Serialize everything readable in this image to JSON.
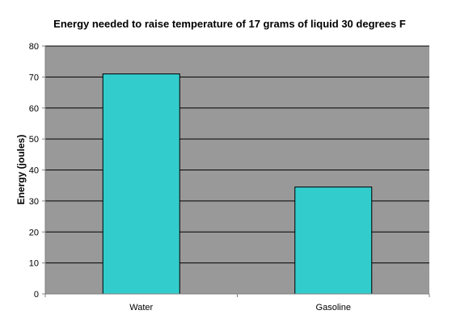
{
  "chart_data": {
    "type": "bar",
    "title": "Energy needed to raise temperature of 17 grams of liquid 30 degrees F",
    "xlabel": "",
    "ylabel": "Energy (joules)",
    "categories": [
      "Water",
      "Gasoline"
    ],
    "values": [
      71,
      34.5
    ],
    "ylim": [
      0,
      80
    ],
    "yticks": [
      0,
      10,
      20,
      30,
      40,
      50,
      60,
      70,
      80
    ],
    "grid": true,
    "legend": "none"
  },
  "colors": {
    "plot_background": "#999999",
    "bar_fill": "#33CCCC",
    "bar_stroke": "#000000",
    "gridline": "#000000",
    "axis": "#808080"
  }
}
